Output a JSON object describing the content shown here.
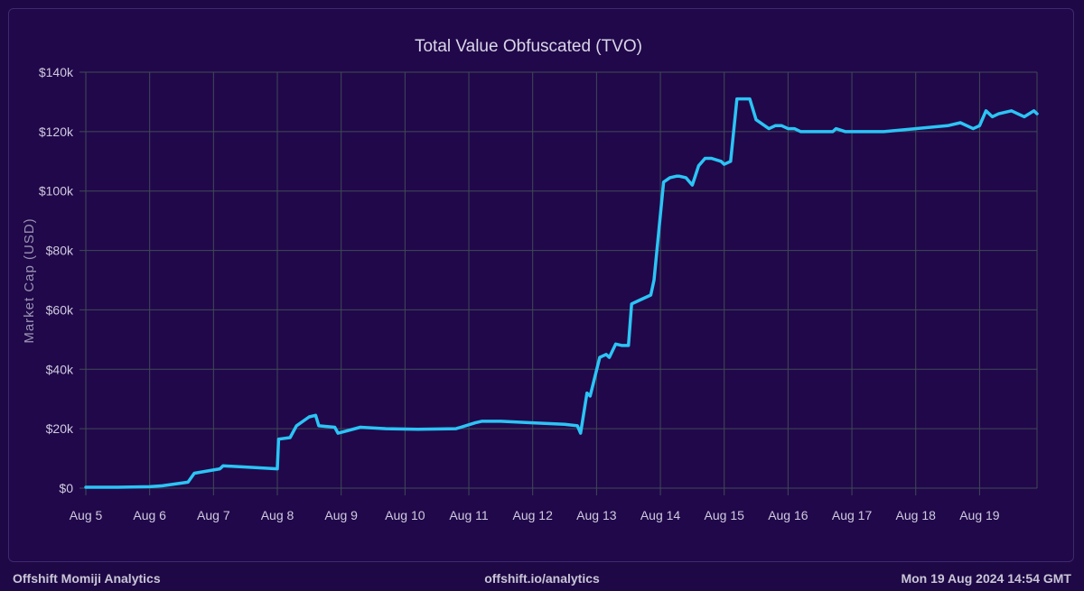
{
  "chart_data": {
    "type": "line",
    "title": "Total Value Obfuscated (TVO)",
    "ylabel": "Market Cap (USD)",
    "xlabel": "",
    "x_ticks": [
      "Aug 5",
      "Aug 6",
      "Aug 7",
      "Aug 8",
      "Aug 9",
      "Aug 10",
      "Aug 11",
      "Aug 12",
      "Aug 13",
      "Aug 14",
      "Aug 15",
      "Aug 16",
      "Aug 17",
      "Aug 18",
      "Aug 19"
    ],
    "y_ticks": [
      "$0",
      "$20k",
      "$40k",
      "$60k",
      "$80k",
      "$100k",
      "$120k",
      "$140k"
    ],
    "xlim": [
      0,
      14.9
    ],
    "ylim": [
      0,
      140000
    ],
    "grid": true,
    "line_color": "#2bc4f5",
    "series": [
      {
        "name": "",
        "x": [
          0.0,
          0.5,
          1.0,
          1.2,
          1.6,
          1.7,
          2.1,
          2.15,
          2.6,
          3.0,
          3.02,
          3.2,
          3.3,
          3.5,
          3.6,
          3.65,
          3.9,
          3.95,
          4.3,
          4.7,
          5.2,
          5.8,
          6.1,
          6.2,
          6.5,
          7.0,
          7.5,
          7.7,
          7.75,
          7.85,
          7.9,
          8.05,
          8.15,
          8.2,
          8.3,
          8.4,
          8.5,
          8.55,
          8.65,
          8.85,
          8.9,
          9.05,
          9.15,
          9.25,
          9.3,
          9.4,
          9.5,
          9.6,
          9.7,
          9.8,
          9.95,
          10.0,
          10.1,
          10.2,
          10.4,
          10.5,
          10.7,
          10.8,
          10.9,
          11.0,
          11.1,
          11.2,
          11.3,
          11.5,
          11.7,
          11.75,
          11.9,
          12.1,
          12.5,
          13.0,
          13.5,
          13.7,
          13.8,
          13.9,
          14.0,
          14.1,
          14.2,
          14.3,
          14.5,
          14.7,
          14.85,
          14.9
        ],
        "y": [
          300,
          300,
          500,
          800,
          2000,
          5000,
          6500,
          7500,
          7000,
          6500,
          16500,
          17000,
          21000,
          24000,
          24500,
          21000,
          20500,
          18500,
          20500,
          20000,
          19800,
          20000,
          22000,
          22500,
          22500,
          22000,
          21500,
          21000,
          18500,
          32000,
          31000,
          44000,
          45000,
          44000,
          48500,
          48000,
          48000,
          62000,
          63000,
          65000,
          70000,
          103000,
          104500,
          105000,
          105000,
          104500,
          102000,
          108500,
          111000,
          111000,
          110000,
          109000,
          110000,
          131000,
          131000,
          124000,
          121000,
          122000,
          122000,
          121000,
          121000,
          120000,
          120000,
          120000,
          120000,
          121000,
          120000,
          120000,
          120000,
          121000,
          122000,
          123000,
          122000,
          121000,
          122000,
          127000,
          125000,
          126000,
          127000,
          125000,
          127000,
          126000
        ]
      }
    ]
  },
  "footer": {
    "left": "Offshift Momiji Analytics",
    "center": "offshift.io/analytics",
    "right": "Mon 19 Aug 2024 14:54 GMT"
  }
}
